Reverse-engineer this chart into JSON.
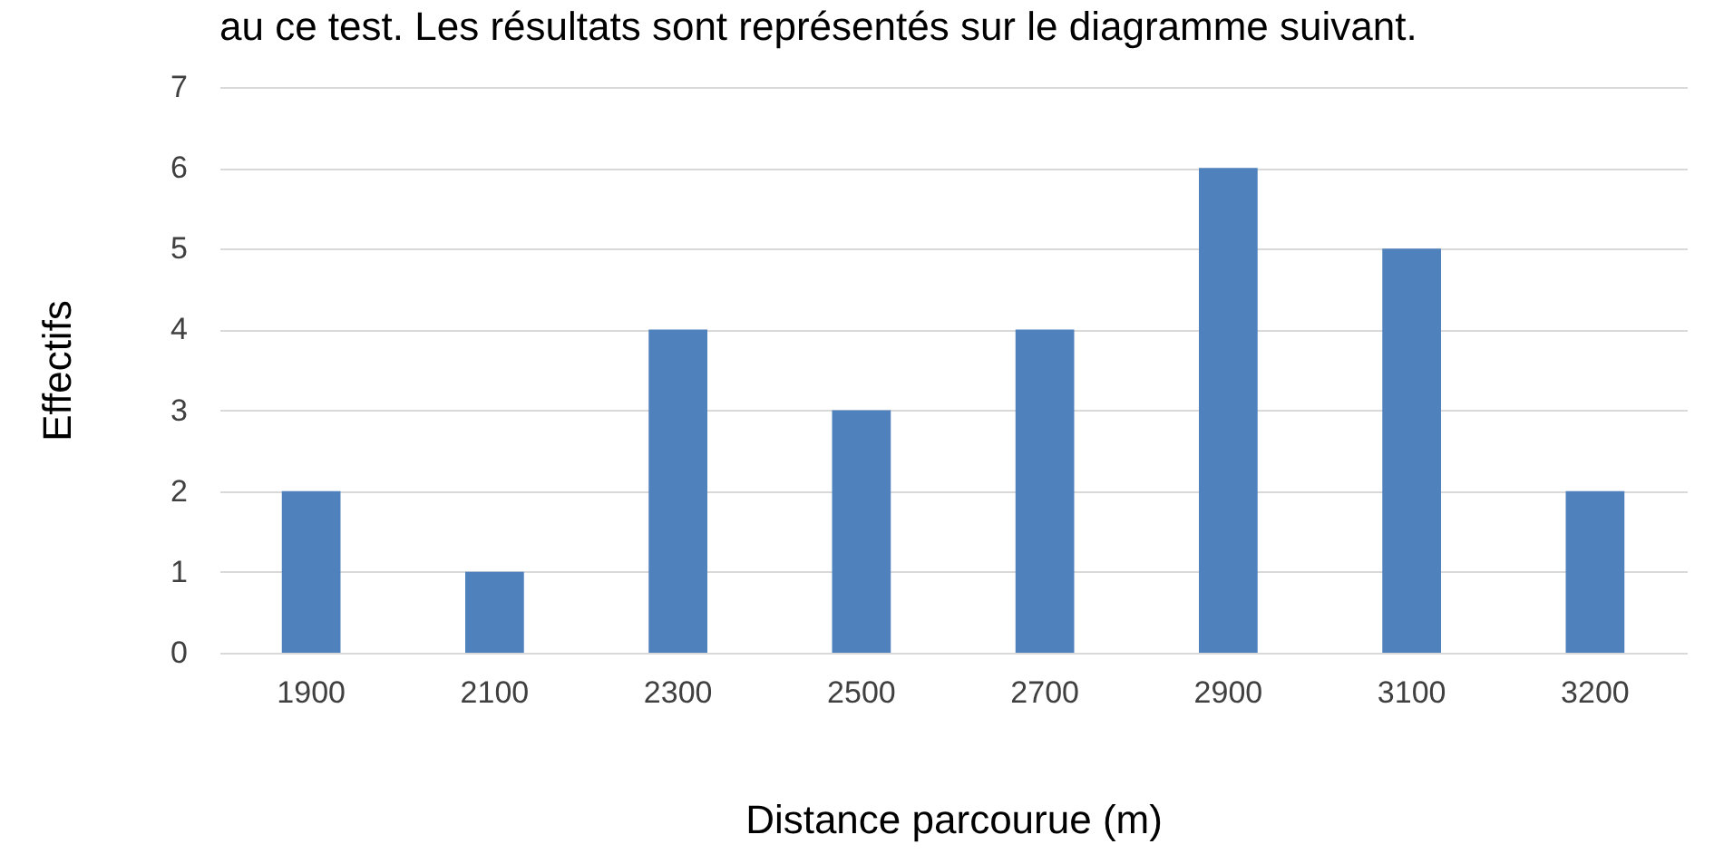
{
  "chart_data": {
    "type": "bar",
    "annotations": [
      "au ce test. Les résultats sont représentés sur le diagramme suivant."
    ],
    "xlabel": "Distance parcourue (m)",
    "ylabel": "Effectifs",
    "categories": [
      "1900",
      "2100",
      "2300",
      "2500",
      "2700",
      "2900",
      "3100",
      "3200"
    ],
    "values": [
      2,
      1,
      4,
      3,
      4,
      6,
      5,
      2
    ],
    "color": "#4f81bd",
    "ylim": [
      0,
      7
    ],
    "yticks": [
      0,
      1,
      2,
      3,
      4,
      5,
      6,
      7
    ],
    "grid": "y"
  }
}
